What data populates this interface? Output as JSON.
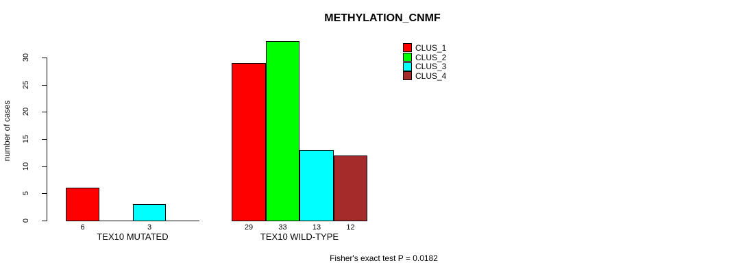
{
  "chart": {
    "title": "METHYLATION_CNMF",
    "ylabel": "number of cases",
    "footnote": "Fisher's exact test P = 0.0182"
  },
  "chart_data": {
    "type": "bar",
    "title": "METHYLATION_CNMF",
    "xlabel": "",
    "ylabel": "number of cases",
    "ylim": [
      0,
      33
    ],
    "yticks": [
      0,
      5,
      10,
      15,
      20,
      25,
      30
    ],
    "grid": false,
    "legend_position": "top-right",
    "background_color": "#ffffff",
    "bar_border_color": "#000000",
    "series": [
      {
        "name": "CLUS_1",
        "color": "#FF0000"
      },
      {
        "name": "CLUS_2",
        "color": "#00FF00"
      },
      {
        "name": "CLUS_3",
        "color": "#00FFFF"
      },
      {
        "name": "CLUS_4",
        "color": "#A52A2A"
      }
    ],
    "groups": [
      {
        "label": "TEX10 MUTATED",
        "values": [
          6,
          0,
          3,
          0
        ],
        "value_labels": [
          "6",
          "",
          "3",
          ""
        ]
      },
      {
        "label": "TEX10 WILD-TYPE",
        "values": [
          29,
          33,
          13,
          12
        ],
        "value_labels": [
          "29",
          "33",
          "13",
          "12"
        ]
      }
    ],
    "annotation": "Fisher's exact test P = 0.0182"
  }
}
